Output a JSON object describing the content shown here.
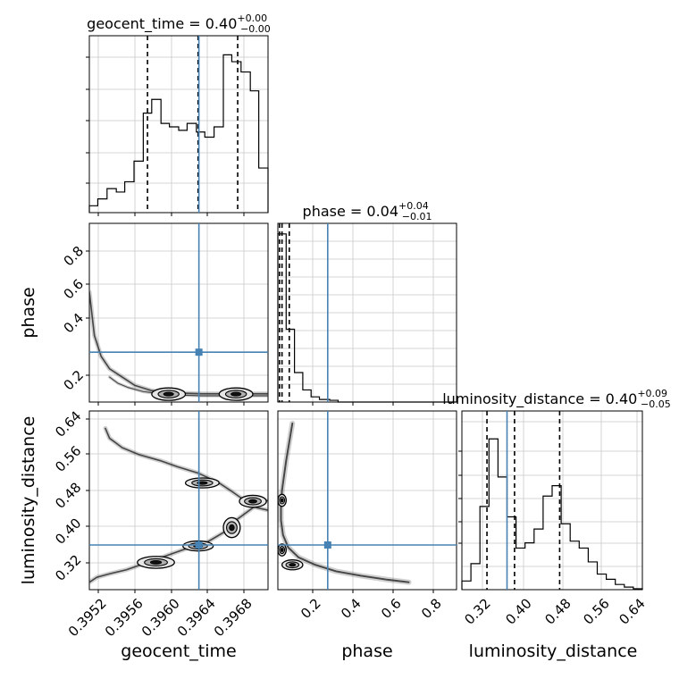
{
  "chart_data": {
    "type": "corner",
    "parameters": [
      "geocent_time",
      "phase",
      "luminosity_distance"
    ],
    "truth_color": "#4682b4",
    "truths": {
      "geocent_time": 0.39636,
      "phase": 0.26,
      "luminosity_distance": 0.38
    },
    "panels": {
      "geocent_time": {
        "title": {
          "text": "geocent_time = 0.40",
          "sup": "+0.00",
          "sub": "−0.00"
        },
        "xlim": [
          0.39506,
          0.39718
        ],
        "quantiles": [
          0.39575,
          0.39635,
          0.39682
        ],
        "hist": {
          "bins": [
            [
              0.39506,
              0.39516,
              0.04
            ],
            [
              0.39516,
              0.39527,
              0.08
            ],
            [
              0.39527,
              0.39538,
              0.14
            ],
            [
              0.39538,
              0.39548,
              0.12
            ],
            [
              0.39548,
              0.39559,
              0.18
            ],
            [
              0.39559,
              0.3957,
              0.3
            ],
            [
              0.3957,
              0.3958,
              0.58
            ],
            [
              0.3958,
              0.39591,
              0.66
            ],
            [
              0.39591,
              0.39601,
              0.52
            ],
            [
              0.39601,
              0.39612,
              0.5
            ],
            [
              0.39612,
              0.39622,
              0.48
            ],
            [
              0.39622,
              0.39633,
              0.52
            ],
            [
              0.39633,
              0.39643,
              0.47
            ],
            [
              0.39643,
              0.39654,
              0.44
            ],
            [
              0.39654,
              0.39665,
              0.5
            ],
            [
              0.39665,
              0.39675,
              0.92
            ],
            [
              0.39675,
              0.39686,
              0.88
            ],
            [
              0.39686,
              0.39697,
              0.82
            ],
            [
              0.39697,
              0.39707,
              0.71
            ],
            [
              0.39707,
              0.39718,
              0.26
            ]
          ]
        }
      },
      "phase": {
        "title": {
          "text": "phase = 0.04",
          "sup": "+0.04",
          "sub": "−0.01"
        },
        "xlim": [
          0.02,
          0.88
        ],
        "quantiles": [
          0.028,
          0.04,
          0.075
        ],
        "hist": {
          "bins": [
            [
              0.02,
              0.06,
              0.97
            ],
            [
              0.06,
              0.1,
              0.42
            ],
            [
              0.1,
              0.14,
              0.17
            ],
            [
              0.14,
              0.18,
              0.07
            ],
            [
              0.18,
              0.22,
              0.03
            ],
            [
              0.22,
              0.27,
              0.015
            ],
            [
              0.27,
              0.31,
              0.01
            ],
            [
              0.31,
              0.88,
              0.0
            ]
          ]
        }
      },
      "luminosity_distance": {
        "title": {
          "text": "luminosity_distance = 0.40",
          "sup": "+0.09",
          "sub": "−0.05"
        },
        "xlim": [
          0.29,
          0.65
        ],
        "quantiles": [
          0.34,
          0.395,
          0.485
        ],
        "hist": {
          "bins": [
            [
              0.29,
              0.308,
              0.05
            ],
            [
              0.308,
              0.326,
              0.15
            ],
            [
              0.326,
              0.344,
              0.48
            ],
            [
              0.344,
              0.362,
              0.87
            ],
            [
              0.362,
              0.38,
              0.65
            ],
            [
              0.38,
              0.398,
              0.42
            ],
            [
              0.398,
              0.416,
              0.24
            ],
            [
              0.416,
              0.434,
              0.27
            ],
            [
              0.434,
              0.452,
              0.35
            ],
            [
              0.452,
              0.47,
              0.54
            ],
            [
              0.47,
              0.488,
              0.6
            ],
            [
              0.488,
              0.506,
              0.38
            ],
            [
              0.506,
              0.524,
              0.28
            ],
            [
              0.524,
              0.542,
              0.24
            ],
            [
              0.542,
              0.56,
              0.16
            ],
            [
              0.56,
              0.578,
              0.09
            ],
            [
              0.578,
              0.596,
              0.06
            ],
            [
              0.596,
              0.614,
              0.03
            ],
            [
              0.614,
              0.632,
              0.015
            ],
            [
              0.632,
              0.65,
              0.005
            ]
          ]
        }
      }
    },
    "pairs": {
      "geocent_time|phase": {
        "ylim": [
          0.02,
          0.88
        ],
        "curves": [
          {
            "x": [
              0.39506,
              0.39512,
              0.3952,
              0.3953,
              0.39545,
              0.3956,
              0.3958,
              0.396,
              0.3964,
              0.397,
              0.39718
            ],
            "y": [
              0.55,
              0.34,
              0.24,
              0.18,
              0.14,
              0.1,
              0.075,
              0.065,
              0.06,
              0.06,
              0.06
            ],
            "w": 1.0
          },
          {
            "x": [
              0.3953,
              0.3954,
              0.39552,
              0.3957,
              0.396,
              0.3964,
              0.397,
              0.39718
            ],
            "y": [
              0.14,
              0.11,
              0.09,
              0.07,
              0.055,
              0.05,
              0.05,
              0.05
            ],
            "w": 0.7
          }
        ],
        "blobs": [
          {
            "x": 0.396,
            "y": 0.058,
            "rx": 0.0002,
            "ry": 0.03
          },
          {
            "x": 0.3968,
            "y": 0.058,
            "rx": 0.0002,
            "ry": 0.03
          }
        ]
      },
      "geocent_time|luminosity_distance": {
        "ylim": [
          0.29,
          0.65
        ],
        "curves": [
          {
            "x": [
              0.39525,
              0.3953,
              0.39545,
              0.39565,
              0.3959,
              0.3961,
              0.39635,
              0.3966,
              0.39675,
              0.3969,
              0.39705,
              0.39718
            ],
            "y": [
              0.615,
              0.595,
              0.576,
              0.562,
              0.55,
              0.538,
              0.525,
              0.505,
              0.488,
              0.47,
              0.455,
              0.45
            ],
            "w": 1.0
          },
          {
            "x": [
              0.39506,
              0.39515,
              0.3953,
              0.3955,
              0.39575,
              0.396,
              0.39625,
              0.39645,
              0.39665,
              0.3968,
              0.397,
              0.39718
            ],
            "y": [
              0.305,
              0.315,
              0.322,
              0.33,
              0.345,
              0.36,
              0.375,
              0.385,
              0.405,
              0.43,
              0.455,
              0.47
            ],
            "w": 1.0
          }
        ],
        "blobs": [
          {
            "x": 0.39585,
            "y": 0.345,
            "rx": 0.00022,
            "ry": 0.012
          },
          {
            "x": 0.39635,
            "y": 0.378,
            "rx": 0.00018,
            "ry": 0.01
          },
          {
            "x": 0.39675,
            "y": 0.415,
            "rx": 0.0001,
            "ry": 0.02
          },
          {
            "x": 0.397,
            "y": 0.468,
            "rx": 0.00016,
            "ry": 0.012
          },
          {
            "x": 0.3964,
            "y": 0.505,
            "rx": 0.0002,
            "ry": 0.01
          }
        ]
      },
      "phase|luminosity_distance": {
        "ylim": [
          0.29,
          0.65
        ],
        "curves": [
          {
            "x": [
              0.09,
              0.08,
              0.07,
              0.06,
              0.05,
              0.04,
              0.035,
              0.035,
              0.045,
              0.07,
              0.12,
              0.2,
              0.3,
              0.42,
              0.55,
              0.65
            ],
            "y": [
              0.625,
              0.6,
              0.575,
              0.55,
              0.52,
              0.49,
              0.46,
              0.43,
              0.4,
              0.375,
              0.355,
              0.34,
              0.327,
              0.318,
              0.31,
              0.305
            ],
            "w": 1.2
          }
        ],
        "blobs": [
          {
            "x": 0.04,
            "y": 0.47,
            "rx": 0.02,
            "ry": 0.012
          },
          {
            "x": 0.04,
            "y": 0.37,
            "rx": 0.02,
            "ry": 0.012
          },
          {
            "x": 0.09,
            "y": 0.34,
            "rx": 0.05,
            "ry": 0.01
          }
        ]
      }
    },
    "axes": {
      "geocent_time": {
        "label": "geocent_time",
        "ticks": [
          "0.3952",
          "0.3956",
          "0.3960",
          "0.3964",
          "0.3968"
        ]
      },
      "phase": {
        "label": "phase",
        "ticks": [
          "0.2",
          "0.4",
          "0.6",
          "0.8"
        ]
      },
      "luminosity_distance": {
        "label": "luminosity_distance",
        "ticks": [
          "0.32",
          "0.40",
          "0.48",
          "0.56",
          "0.64"
        ]
      }
    }
  }
}
